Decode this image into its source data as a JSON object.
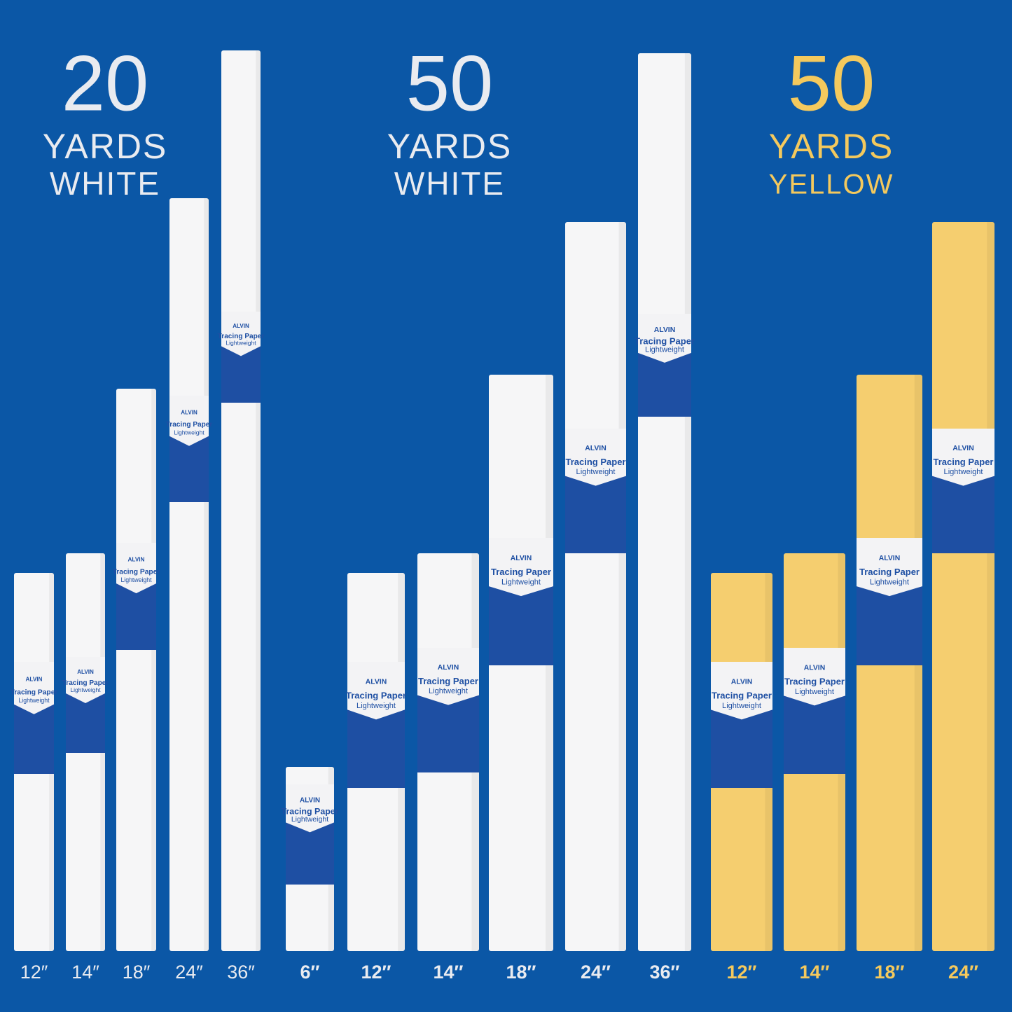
{
  "groups": [
    {
      "number": "20",
      "unit": "YARDS",
      "color": "WHITE",
      "rolls": [
        {
          "size": "12″"
        },
        {
          "size": "14″"
        },
        {
          "size": "18″"
        },
        {
          "size": "24″"
        },
        {
          "size": "36″"
        }
      ]
    },
    {
      "number": "50",
      "unit": "YARDS",
      "color": "WHITE",
      "rolls": [
        {
          "size": "6″"
        },
        {
          "size": "12″"
        },
        {
          "size": "14″"
        },
        {
          "size": "18″"
        },
        {
          "size": "24″"
        },
        {
          "size": "36″"
        }
      ]
    },
    {
      "number": "50",
      "unit": "YARDS",
      "color": "YELLOW",
      "rolls": [
        {
          "size": "12″"
        },
        {
          "size": "14″"
        },
        {
          "size": "18″"
        },
        {
          "size": "24″"
        }
      ]
    }
  ],
  "label": {
    "brand": "ALVIN",
    "product": "Tracing Paper",
    "weight": "Lightweight"
  }
}
